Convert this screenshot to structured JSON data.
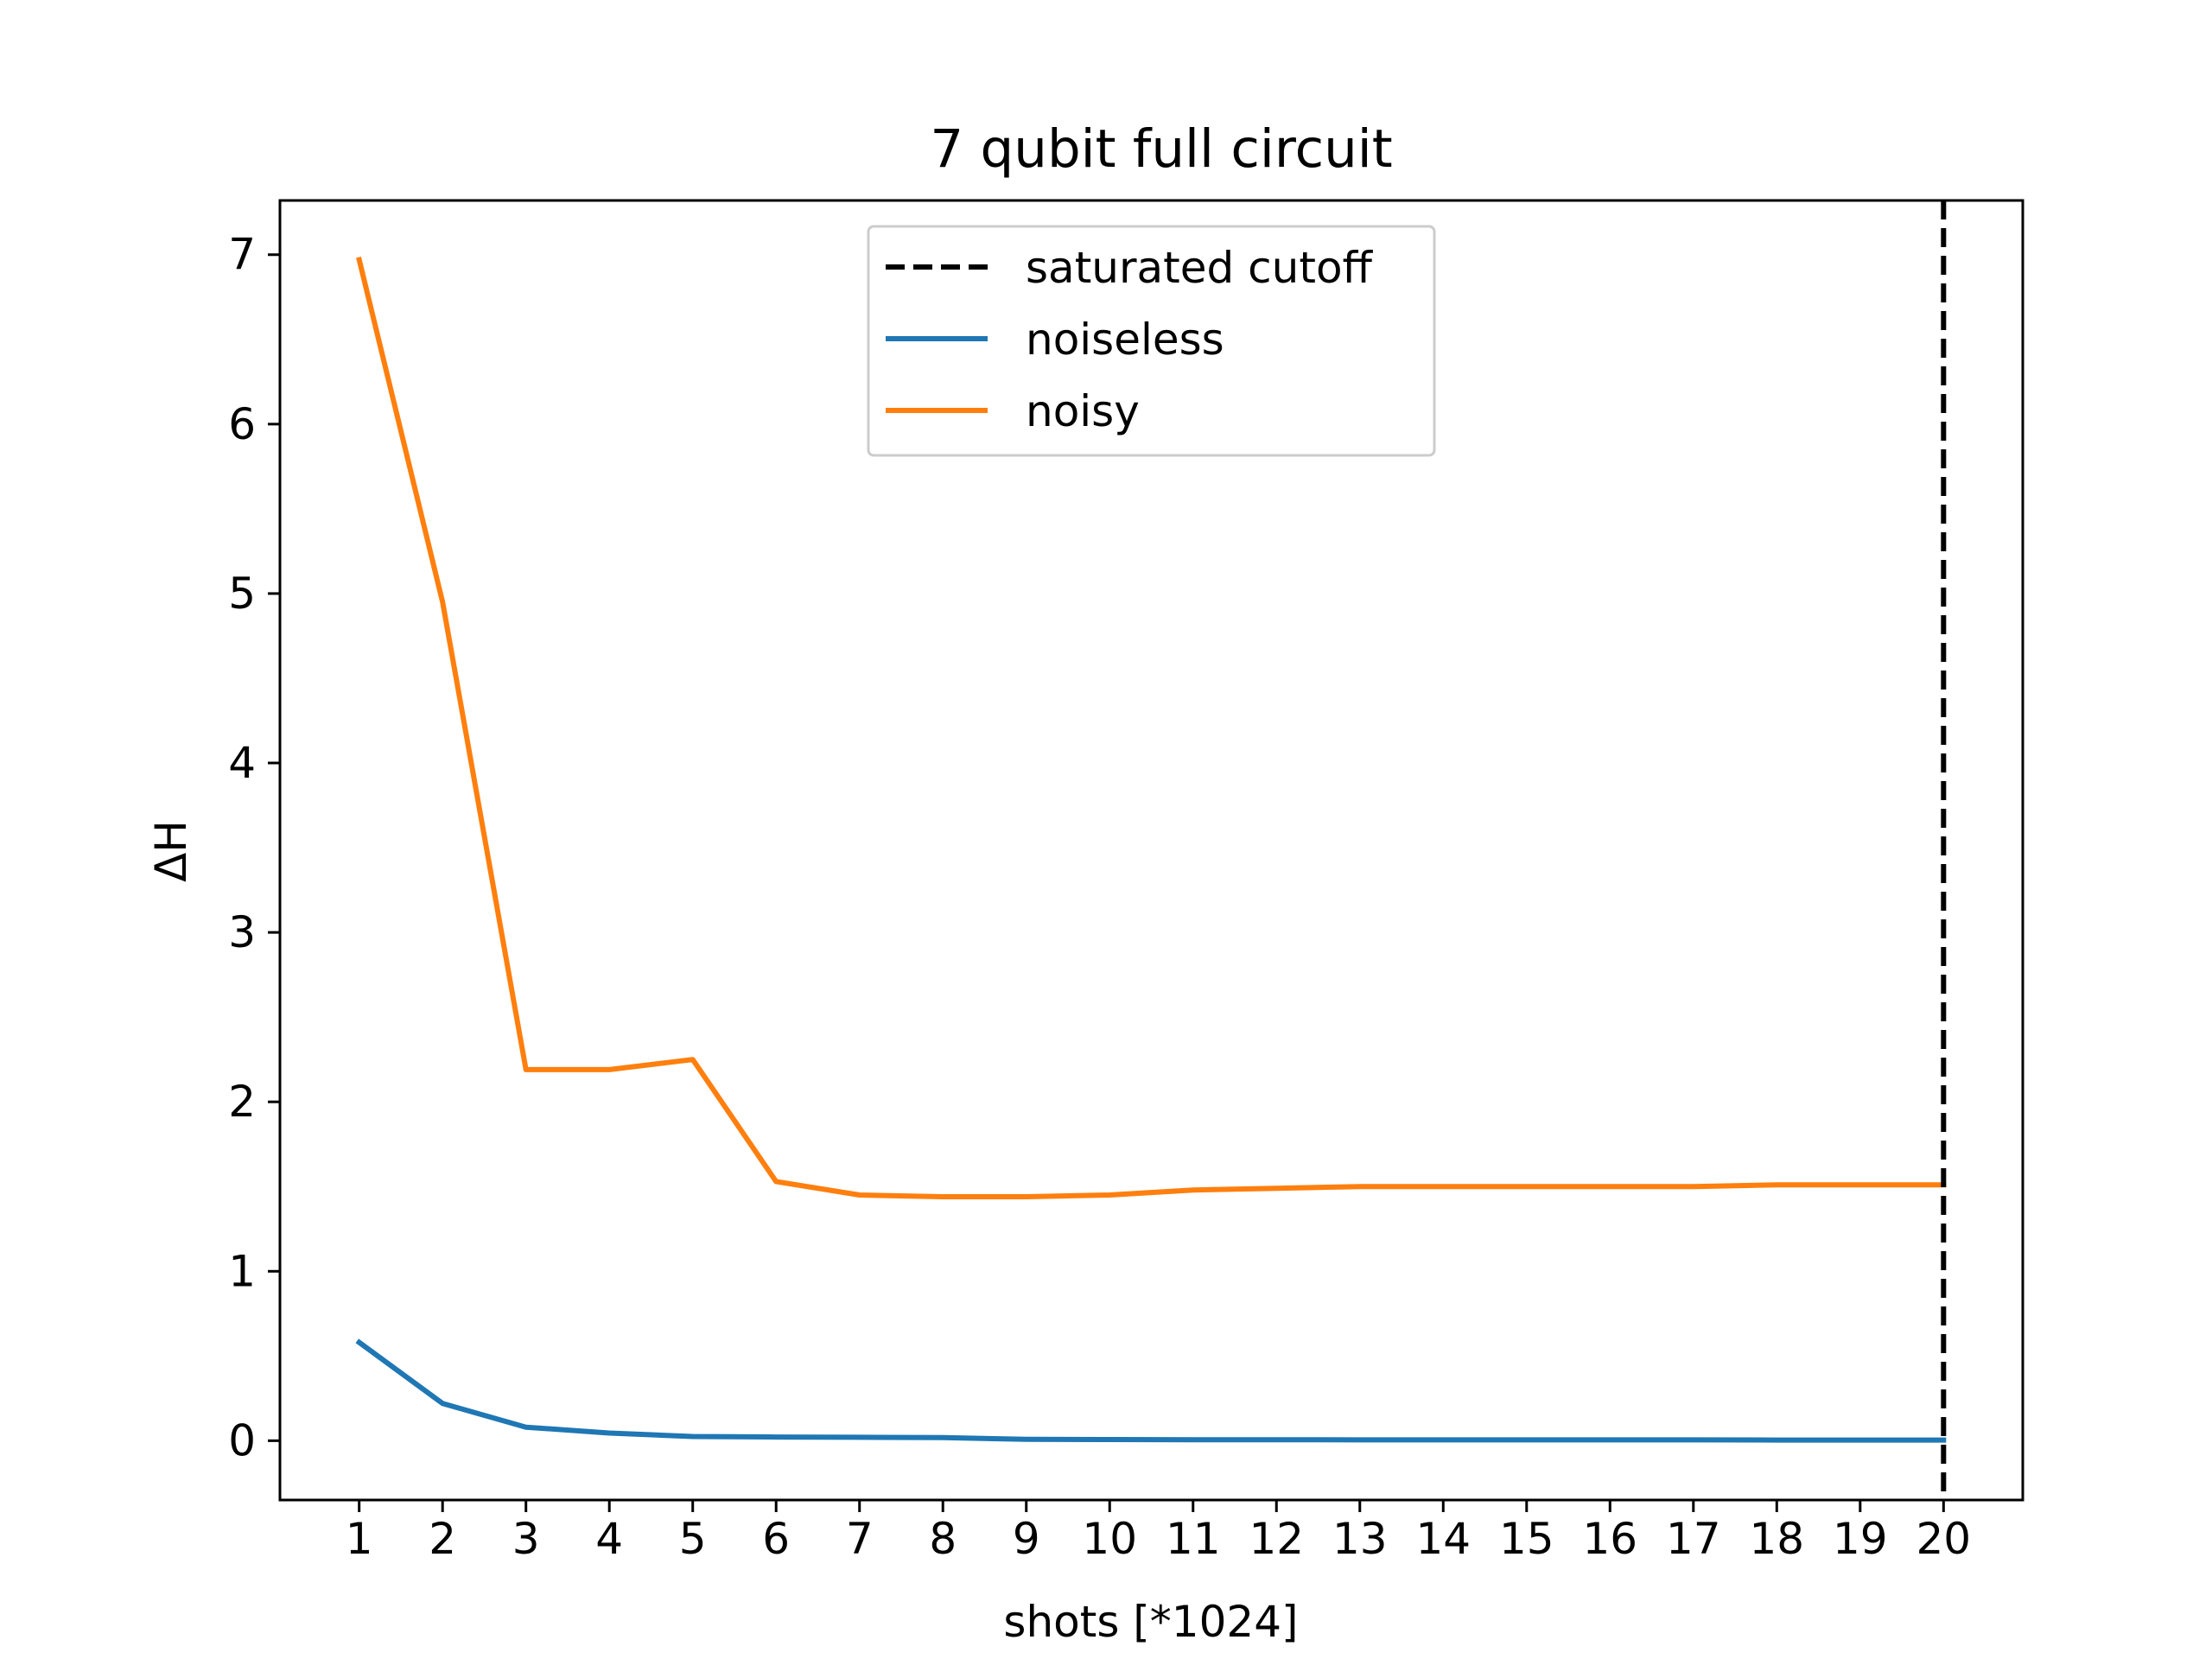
{
  "chart_data": {
    "type": "line",
    "title": "7 qubit full circuit",
    "xlabel": "shots [*1024]",
    "ylabel": "ΔH",
    "x": [
      1,
      2,
      3,
      4,
      5,
      6,
      7,
      8,
      9,
      10,
      11,
      12,
      13,
      14,
      15,
      16,
      17,
      18,
      19,
      20
    ],
    "x_tick_labels": [
      "1",
      "2",
      "3",
      "4",
      "5",
      "6",
      "7",
      "8",
      "9",
      "10",
      "11",
      "12",
      "13",
      "14",
      "15",
      "16",
      "17",
      "18",
      "19",
      "20"
    ],
    "y_ticks": [
      0,
      1,
      2,
      3,
      4,
      5,
      6,
      7
    ],
    "y_tick_labels": [
      "0",
      "1",
      "2",
      "3",
      "4",
      "5",
      "6",
      "7"
    ],
    "xlim": [
      0.05,
      20.95
    ],
    "ylim": [
      -0.35,
      7.32
    ],
    "grid": false,
    "legend_position": "top-center",
    "series": [
      {
        "name": "noiseless",
        "color": "#1f77b4",
        "values": [
          0.58,
          0.22,
          0.08,
          0.045,
          0.025,
          0.022,
          0.02,
          0.018,
          0.008,
          0.007,
          0.006,
          0.006,
          0.005,
          0.005,
          0.005,
          0.005,
          0.005,
          0.004,
          0.004,
          0.004
        ]
      },
      {
        "name": "noisy",
        "color": "#ff7f0e",
        "values": [
          6.97,
          4.95,
          2.19,
          2.19,
          2.25,
          1.53,
          1.45,
          1.44,
          1.44,
          1.45,
          1.48,
          1.49,
          1.5,
          1.5,
          1.5,
          1.5,
          1.5,
          1.51,
          1.51,
          1.51
        ]
      }
    ],
    "vlines": [
      {
        "name": "saturated cutoff",
        "x": 20,
        "color": "#000000",
        "style": "dashed"
      }
    ],
    "legend": [
      "saturated cutoff",
      "noiseless",
      "noisy"
    ]
  }
}
